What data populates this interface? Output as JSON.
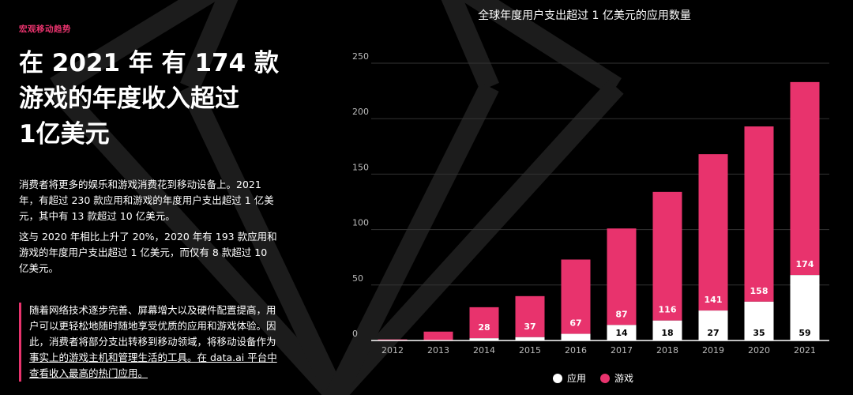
{
  "section_label": "宏观移动趋势",
  "headline": {
    "line1": "在 2021 年 有 174 款",
    "line2": "游戏的年度收入超过",
    "line3": "1亿美元"
  },
  "paragraphs": [
    "消费者将更多的娱乐和游戏消费花到移动设备上。2021 年，有超过 230 款应用和游戏的年度用户支出超过 1 亿美元，其中有 13 款超过 10 亿美元。",
    "这与 2020 年相比上升了 20%，2020 年有 193 款应用和 游戏的年度用户支出超过 1 亿美元，而仅有 8 款超过 10 亿美元。"
  ],
  "note": {
    "text": "随着网络技术逐步完善、屏幕增大以及硬件配置提高，用户可以更轻松地随时随地享受优质的应用和游戏体验。因此，消费者将部分支出转移到移动领域，将移动设备作为",
    "link": "事实上的游戏主机和管理生活的工具。在 data.ai 平台中查看收入最高的热门应用。"
  },
  "colors": {
    "accent": "#e8336d",
    "apps": "#ffffff",
    "games": "#e8336d",
    "background": "#000000"
  },
  "chart_data": {
    "type": "bar",
    "stacked": true,
    "title": "全球年度用户支出超过 1 亿美元的应用数量",
    "categories": [
      "2012",
      "2013",
      "2014",
      "2015",
      "2016",
      "2017",
      "2018",
      "2019",
      "2020",
      "2021"
    ],
    "series": [
      {
        "name": "应用",
        "values": [
          0,
          0,
          2,
          3,
          6,
          14,
          18,
          27,
          35,
          59
        ],
        "labels": [
          null,
          null,
          null,
          null,
          null,
          "14",
          "18",
          "27",
          "35",
          "59"
        ]
      },
      {
        "name": "游戏",
        "values": [
          1,
          8,
          28,
          37,
          67,
          87,
          116,
          141,
          158,
          174
        ],
        "labels": [
          null,
          null,
          "28",
          "37",
          "67",
          "87",
          "116",
          "141",
          "158",
          "174"
        ]
      }
    ],
    "visible_stack_totals": [
      1,
      8,
      30,
      40,
      73,
      101,
      134,
      168,
      193,
      233
    ],
    "ylim": [
      0,
      250
    ],
    "yticks": [
      0,
      50,
      100,
      150,
      200,
      250
    ],
    "grid": true,
    "legend": "bottom"
  }
}
